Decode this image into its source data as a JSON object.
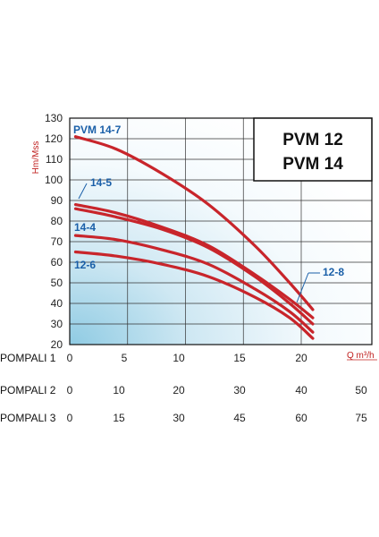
{
  "chart_data": {
    "type": "line",
    "title_lines": [
      "PVM 12",
      "PVM 14"
    ],
    "ylabel": "Hm/Mss",
    "xlabel": "Q m³/h",
    "ylim": [
      20,
      130
    ],
    "yticks": [
      "20",
      "30",
      "40",
      "50",
      "60",
      "70",
      "80",
      "90",
      "100",
      "110",
      "120",
      "130"
    ],
    "xlim": [
      0,
      24
    ],
    "grid": true,
    "rows": [
      {
        "name": "POMPALI 1",
        "ticks": [
          "0",
          "5",
          "10",
          "15",
          "20"
        ]
      },
      {
        "name": "POMPALI 2",
        "ticks": [
          "0",
          "10",
          "20",
          "30",
          "40",
          "50"
        ]
      },
      {
        "name": "POMPALI 3",
        "ticks": [
          "0",
          "15",
          "30",
          "45",
          "60",
          "75"
        ]
      }
    ],
    "series": [
      {
        "name": "PVM 14-7",
        "x": [
          0.5,
          4,
          8,
          12,
          16,
          19,
          21
        ],
        "y": [
          121,
          115,
          103,
          88,
          68,
          50,
          37
        ]
      },
      {
        "name": "14-5",
        "x": [
          0.5,
          4,
          8,
          12,
          16,
          19,
          21
        ],
        "y": [
          88,
          84,
          77,
          68,
          54,
          42,
          33
        ]
      },
      {
        "name": "",
        "x": [
          0.5,
          4,
          8,
          12,
          16,
          19,
          21
        ],
        "y": [
          86,
          82,
          76,
          67,
          53,
          40,
          30
        ]
      },
      {
        "name": "14-4",
        "x": [
          0.5,
          4,
          8,
          12,
          16,
          19,
          21
        ],
        "y": [
          73,
          71,
          66,
          59,
          47,
          36,
          26
        ]
      },
      {
        "name": "12-6",
        "x": [
          0.5,
          4,
          8,
          12,
          16,
          19,
          21
        ],
        "y": [
          65,
          63,
          59,
          53,
          43,
          33,
          23
        ]
      },
      {
        "name": "12-8",
        "x": [],
        "y": []
      }
    ],
    "colors": {
      "curve": "#c8252b",
      "label": "#1a5fa8",
      "axis_title": "#c0201f"
    }
  }
}
